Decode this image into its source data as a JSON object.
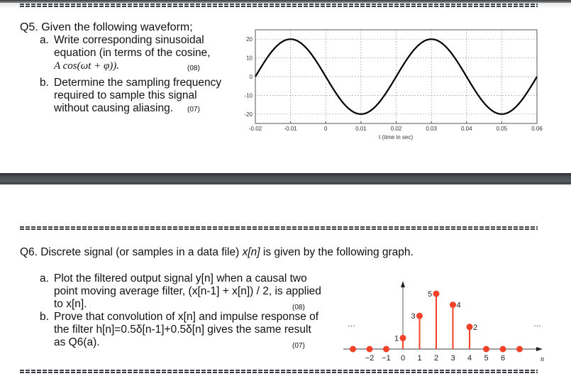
{
  "q5": {
    "title": "Q5. Given the following waveform;",
    "a": {
      "label": "a.",
      "line1": "Write corresponding sinusoidal",
      "line2": "equation (in terms of the cosine,",
      "formula": "A cos(ωt + φ)).",
      "marks": "(08)"
    },
    "b": {
      "label": "b.",
      "line1": "Determine the sampling frequency",
      "line2": "required to sample this signal",
      "line3": "without causing aliasing.",
      "marks": "(07)"
    }
  },
  "q6": {
    "title_pre": "Q6. Discrete signal (or samples in a data file) ",
    "title_sig": "x[n]",
    "title_post": " is given by the following graph.",
    "a": {
      "label": "a.",
      "line1": "Plot the filtered output signal y[n] when a causal two",
      "line2": "point moving average filter, (x[n-1] + x[n]) / 2, is applied",
      "line3": "to x[n].",
      "marks": "(08)"
    },
    "b": {
      "label": "b.",
      "line1": "Prove that convolution of x[n] and impulse response of",
      "line2": "the filter h[n]=0.5δ[n-1]+0.5δ[n] gives the same result",
      "line3": "as Q6(a).",
      "marks": "(07)"
    }
  },
  "chart_data": [
    {
      "type": "line",
      "title": "",
      "xlabel": "t   (time in sec)",
      "ylabel": "",
      "xlim": [
        -0.02,
        0.06
      ],
      "ylim": [
        -25,
        25
      ],
      "x_ticks": [
        "-0.02",
        "-0.01",
        "0",
        "0.01",
        "0.02",
        "0.03",
        "0.04",
        "0.05",
        "0.06"
      ],
      "y_ticks": [
        "20",
        "10",
        "0",
        "-10",
        "-20"
      ],
      "grid": true,
      "series": [
        {
          "name": "waveform",
          "x": [
            -0.02,
            -0.015,
            -0.01,
            -0.005,
            0,
            0.005,
            0.01,
            0.015,
            0.02,
            0.025,
            0.03,
            0.035,
            0.04,
            0.045,
            0.05,
            0.055,
            0.06
          ],
          "values": [
            0,
            14.1,
            20,
            14.1,
            0,
            -14.1,
            -20,
            -14.1,
            0,
            14.1,
            20,
            14.1,
            0,
            -14.1,
            -20,
            -14.1,
            0
          ]
        }
      ],
      "amplitude": 20,
      "period": 0.04
    },
    {
      "type": "stem",
      "title": "",
      "xlabel": "n",
      "ylabel": "",
      "n_ticks": [
        "−2",
        "−1",
        "0",
        "1",
        "2",
        "3",
        "4",
        "5",
        "6"
      ],
      "x": [
        -3,
        -2,
        -1,
        0,
        1,
        2,
        3,
        4,
        5,
        6,
        7
      ],
      "values": [
        0,
        0,
        0,
        1,
        3,
        5,
        4,
        2,
        0,
        0,
        0
      ],
      "value_labels": [
        "",
        "",
        "",
        "1",
        "3",
        "5",
        "4",
        "2",
        "",
        "",
        ""
      ],
      "ellipsis_left": "…",
      "ellipsis_right": "…",
      "stem_color": "#f2432a"
    }
  ]
}
